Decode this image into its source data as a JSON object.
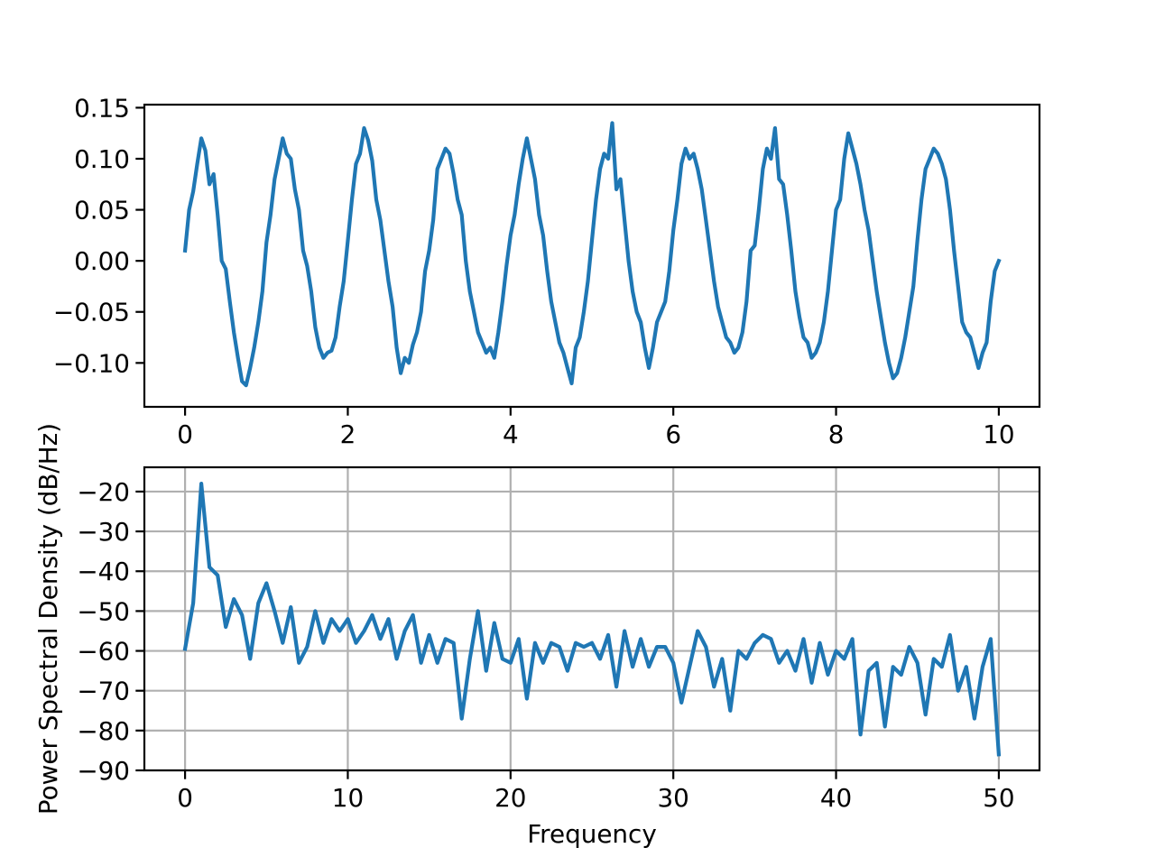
{
  "chart_data": [
    {
      "type": "line",
      "title": "",
      "xlabel": "",
      "ylabel": "",
      "xlim": [
        -0.5,
        10.5
      ],
      "ylim": [
        -0.143,
        0.153
      ],
      "grid": false,
      "xticks": [
        0,
        2,
        4,
        6,
        8,
        10
      ],
      "xtick_labels": [
        "0",
        "2",
        "4",
        "6",
        "8",
        "10"
      ],
      "yticks": [
        -0.1,
        -0.05,
        0.0,
        0.05,
        0.1,
        0.15
      ],
      "ytick_labels": [
        "−0.10",
        "−0.05",
        "0.00",
        "0.05",
        "0.10",
        "0.15"
      ],
      "color": "#1f77b4",
      "x_start": 0,
      "x_step": 0.05,
      "y": [
        0.01,
        0.05,
        0.068,
        0.095,
        0.12,
        0.108,
        0.075,
        0.085,
        0.045,
        0.0,
        -0.008,
        -0.04,
        -0.07,
        -0.095,
        -0.118,
        -0.122,
        -0.105,
        -0.085,
        -0.06,
        -0.03,
        0.018,
        0.045,
        0.08,
        0.1,
        0.12,
        0.105,
        0.1,
        0.07,
        0.05,
        0.01,
        -0.005,
        -0.03,
        -0.065,
        -0.085,
        -0.095,
        -0.09,
        -0.088,
        -0.075,
        -0.045,
        -0.02,
        0.02,
        0.06,
        0.095,
        0.105,
        0.13,
        0.118,
        0.098,
        0.06,
        0.04,
        0.01,
        -0.02,
        -0.045,
        -0.085,
        -0.11,
        -0.095,
        -0.1,
        -0.082,
        -0.07,
        -0.05,
        -0.01,
        0.01,
        0.04,
        0.09,
        0.1,
        0.11,
        0.105,
        0.085,
        0.06,
        0.045,
        0.0,
        -0.03,
        -0.05,
        -0.07,
        -0.08,
        -0.09,
        -0.085,
        -0.095,
        -0.07,
        -0.04,
        -0.005,
        0.025,
        0.045,
        0.075,
        0.1,
        0.12,
        0.1,
        0.08,
        0.045,
        0.025,
        -0.01,
        -0.04,
        -0.06,
        -0.08,
        -0.09,
        -0.105,
        -0.12,
        -0.085,
        -0.075,
        -0.05,
        -0.02,
        0.02,
        0.06,
        0.09,
        0.105,
        0.1,
        0.135,
        0.07,
        0.08,
        0.04,
        0.0,
        -0.03,
        -0.05,
        -0.06,
        -0.085,
        -0.105,
        -0.085,
        -0.06,
        -0.05,
        -0.04,
        -0.01,
        0.03,
        0.06,
        0.095,
        0.11,
        0.1,
        0.105,
        0.09,
        0.07,
        0.04,
        0.01,
        -0.02,
        -0.045,
        -0.06,
        -0.075,
        -0.08,
        -0.09,
        -0.085,
        -0.07,
        -0.04,
        0.01,
        0.015,
        0.05,
        0.09,
        0.11,
        0.1,
        0.13,
        0.08,
        0.075,
        0.045,
        0.01,
        -0.03,
        -0.055,
        -0.075,
        -0.08,
        -0.095,
        -0.09,
        -0.08,
        -0.06,
        -0.03,
        0.01,
        0.05,
        0.06,
        0.1,
        0.125,
        0.11,
        0.095,
        0.075,
        0.05,
        0.03,
        0.0,
        -0.03,
        -0.055,
        -0.08,
        -0.1,
        -0.115,
        -0.11,
        -0.095,
        -0.075,
        -0.05,
        -0.025,
        0.02,
        0.06,
        0.09,
        0.1,
        0.11,
        0.105,
        0.095,
        0.08,
        0.05,
        0.01,
        -0.025,
        -0.06,
        -0.07,
        -0.075,
        -0.09,
        -0.105,
        -0.09,
        -0.08,
        -0.04,
        -0.01,
        0.0
      ]
    },
    {
      "type": "line",
      "title": "",
      "xlabel": "Frequency",
      "ylabel": "Power Spectral Density (dB/Hz)",
      "xlim": [
        -2.5,
        52.5
      ],
      "ylim": [
        -90,
        -13.9
      ],
      "grid": true,
      "xticks": [
        0,
        10,
        20,
        30,
        40,
        50
      ],
      "xtick_labels": [
        "0",
        "10",
        "20",
        "30",
        "40",
        "50"
      ],
      "yticks": [
        -90,
        -80,
        -70,
        -60,
        -50,
        -40,
        -30,
        -20
      ],
      "ytick_labels": [
        "−90",
        "−80",
        "−70",
        "−60",
        "−50",
        "−40",
        "−30",
        "−20"
      ],
      "color": "#1f77b4",
      "x_start": 0,
      "x_step": 0.5,
      "y": [
        -59.5,
        -48,
        -18,
        -39,
        -41,
        -54,
        -47,
        -51,
        -62,
        -48,
        -43,
        -50,
        -58,
        -49,
        -63,
        -59,
        -50,
        -58,
        -52,
        -55,
        -52,
        -58,
        -55,
        -51,
        -57,
        -52,
        -62,
        -55,
        -51,
        -63,
        -56,
        -63,
        -57,
        -58,
        -77,
        -62,
        -50,
        -65,
        -53,
        -62,
        -63,
        -57,
        -72,
        -58,
        -63,
        -58,
        -59,
        -65,
        -58,
        -59,
        -58,
        -62,
        -56,
        -69,
        -55,
        -64,
        -57,
        -64,
        -59,
        -59,
        -63,
        -73,
        -64,
        -55,
        -59,
        -69,
        -62,
        -75,
        -60,
        -62,
        -58,
        -56,
        -57,
        -63,
        -60,
        -65,
        -57,
        -68,
        -58,
        -66,
        -60,
        -62,
        -57,
        -81,
        -65,
        -63,
        -79,
        -64,
        -66,
        -59,
        -63,
        -76,
        -62,
        -64,
        -56,
        -70,
        -64,
        -77,
        -64,
        -57,
        -86
      ]
    }
  ]
}
